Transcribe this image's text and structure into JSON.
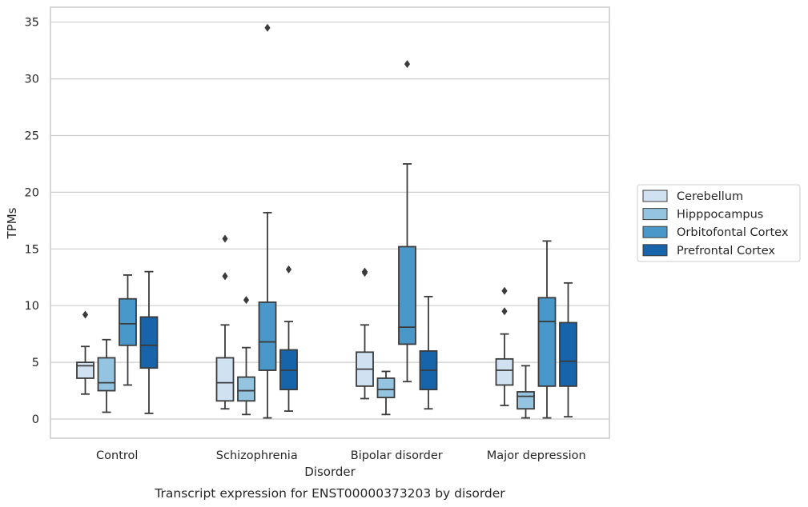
{
  "chart_data": {
    "type": "box",
    "xlabel": "Disorder",
    "ylabel": "TPMs",
    "caption": "Transcript expression for ENST00000373203 by disorder",
    "ylim": [
      -1.6,
      36.3
    ],
    "yticks": [
      0,
      5,
      10,
      15,
      20,
      25,
      30,
      35
    ],
    "grid": "horizontal",
    "legend_position": "right",
    "categories": [
      "Control",
      "Schizophrenia",
      "Bipolar disorder",
      "Major depression"
    ],
    "series": [
      {
        "name": "Cerebellum",
        "color": "#d0e1f2",
        "boxes": [
          {
            "whisker_low": 2.2,
            "q1": 3.6,
            "median": 4.7,
            "q3": 5.0,
            "whisker_high": 6.4,
            "outliers": [
              9.2
            ]
          },
          {
            "whisker_low": 0.9,
            "q1": 1.6,
            "median": 3.2,
            "q3": 5.4,
            "whisker_high": 8.3,
            "outliers": [
              12.6,
              15.9
            ]
          },
          {
            "whisker_low": 1.8,
            "q1": 2.9,
            "median": 4.4,
            "q3": 5.9,
            "whisker_high": 8.3,
            "outliers": [
              12.9,
              13.0
            ]
          },
          {
            "whisker_low": 1.2,
            "q1": 3.0,
            "median": 4.3,
            "q3": 5.3,
            "whisker_high": 7.5,
            "outliers": [
              9.5,
              11.3
            ]
          }
        ]
      },
      {
        "name": "Hipppocampus",
        "color": "#94c4df",
        "boxes": [
          {
            "whisker_low": 0.6,
            "q1": 2.5,
            "median": 3.2,
            "q3": 5.4,
            "whisker_high": 7.0,
            "outliers": []
          },
          {
            "whisker_low": 0.4,
            "q1": 1.6,
            "median": 2.5,
            "q3": 3.7,
            "whisker_high": 6.3,
            "outliers": [
              10.5
            ]
          },
          {
            "whisker_low": 0.4,
            "q1": 1.9,
            "median": 2.6,
            "q3": 3.6,
            "whisker_high": 4.2,
            "outliers": []
          },
          {
            "whisker_low": 0.1,
            "q1": 0.9,
            "median": 2.0,
            "q3": 2.4,
            "whisker_high": 4.7,
            "outliers": []
          }
        ]
      },
      {
        "name": "Orbitofontal Cortex",
        "color": "#4a98c9",
        "boxes": [
          {
            "whisker_low": 3.0,
            "q1": 6.5,
            "median": 8.4,
            "q3": 10.6,
            "whisker_high": 12.7,
            "outliers": []
          },
          {
            "whisker_low": 0.1,
            "q1": 4.3,
            "median": 6.8,
            "q3": 10.3,
            "whisker_high": 18.2,
            "outliers": [
              34.5
            ]
          },
          {
            "whisker_low": 3.3,
            "q1": 6.6,
            "median": 8.1,
            "q3": 15.2,
            "whisker_high": 22.5,
            "outliers": [
              31.3
            ]
          },
          {
            "whisker_low": 0.1,
            "q1": 2.9,
            "median": 8.6,
            "q3": 10.7,
            "whisker_high": 15.7,
            "outliers": []
          }
        ]
      },
      {
        "name": "Prefrontal Cortex",
        "color": "#1764ab",
        "boxes": [
          {
            "whisker_low": 0.5,
            "q1": 4.5,
            "median": 6.5,
            "q3": 9.0,
            "whisker_high": 13.0,
            "outliers": []
          },
          {
            "whisker_low": 0.7,
            "q1": 2.6,
            "median": 4.3,
            "q3": 6.1,
            "whisker_high": 8.6,
            "outliers": [
              13.2
            ]
          },
          {
            "whisker_low": 0.9,
            "q1": 2.6,
            "median": 4.3,
            "q3": 6.0,
            "whisker_high": 10.8,
            "outliers": []
          },
          {
            "whisker_low": 0.2,
            "q1": 2.9,
            "median": 5.1,
            "q3": 8.5,
            "whisker_high": 12.0,
            "outliers": []
          }
        ]
      }
    ]
  }
}
